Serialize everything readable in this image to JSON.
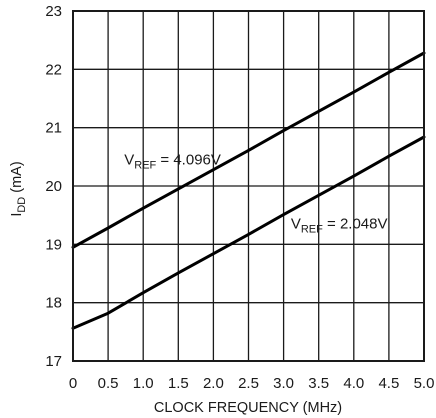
{
  "chart_data": {
    "type": "line",
    "xlabel": "CLOCK FREQUENCY (MHz)",
    "ylabel": {
      "main": "I",
      "sub": "DD",
      "rest": " (mA)"
    },
    "xlim": [
      0,
      5.0
    ],
    "ylim": [
      17,
      23
    ],
    "x_ticks": [
      "0",
      "0.5",
      "1.0",
      "1.5",
      "2.0",
      "2.5",
      "3.0",
      "3.5",
      "4.0",
      "4.5",
      "5.0"
    ],
    "y_ticks": [
      "17",
      "18",
      "19",
      "20",
      "21",
      "22",
      "23"
    ],
    "grid": true,
    "series": [
      {
        "label": {
          "main": "V",
          "sub": "REF",
          "rest": " = 4.096V"
        },
        "x": [
          0,
          0.5,
          1.0,
          1.5,
          2.0,
          2.5,
          3.0,
          3.5,
          4.0,
          4.5,
          5.0
        ],
        "y": [
          18.95,
          19.28,
          19.62,
          19.95,
          20.28,
          20.61,
          20.95,
          21.28,
          21.61,
          21.95,
          22.28
        ]
      },
      {
        "label": {
          "main": "V",
          "sub": "REF",
          "rest": " = 2.048V"
        },
        "x": [
          0,
          0.5,
          1.0,
          1.5,
          2.0,
          2.5,
          3.0,
          3.5,
          4.0,
          4.5,
          5.0
        ],
        "y": [
          17.56,
          17.82,
          18.17,
          18.51,
          18.84,
          19.17,
          19.51,
          19.84,
          20.17,
          20.51,
          20.84
        ]
      }
    ]
  }
}
